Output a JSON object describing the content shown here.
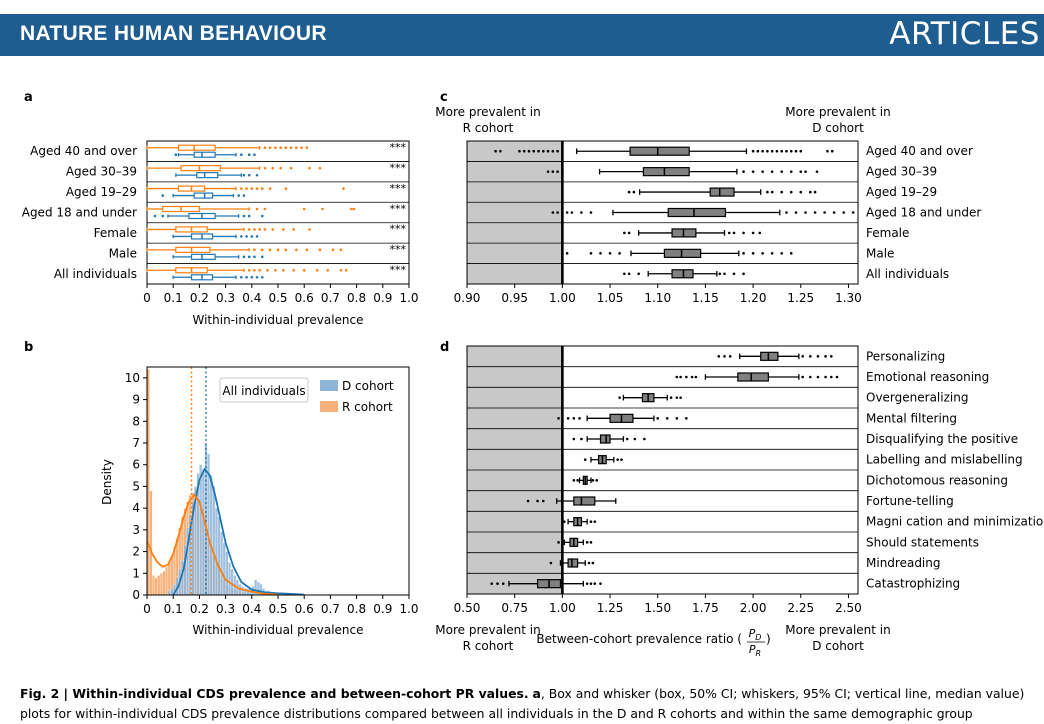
{
  "header": {
    "journal": "NATURE HUMAN BEHAVIOUR",
    "section": "ARTICLES"
  },
  "panel_a": {
    "label": "a"
  },
  "panel_b": {
    "label": "b"
  },
  "panel_c": {
    "label": "c",
    "left_note_1": "More prevalent in",
    "left_note_2": "R cohort",
    "right_note_1": "More prevalent in",
    "right_note_2": "D cohort"
  },
  "panel_d": {
    "label": "d",
    "left_note_1": "More prevalent in",
    "left_note_2": "R cohort",
    "right_note_1": "More prevalent in",
    "right_note_2": "D cohort",
    "xlabel_prefix": "Between-cohort prevalence ratio (",
    "ratio_num": "P",
    "ratio_num_sub": "D",
    "ratio_den": "P",
    "ratio_den_sub": "R",
    "xlabel_suffix": ")"
  },
  "colors": {
    "d_cohort": "#1f77b4",
    "r_cohort": "#ff7f0e",
    "d_fill": "#8fb5d9",
    "r_fill": "#f7b27b",
    "grey_box": "#808080",
    "shade": "#c8c8c8",
    "banner": "#1f5d91"
  },
  "caption": {
    "bold": "Fig. 2 | Within-individual CDS prevalence and between-cohort PR values.",
    "panel": "a",
    "line1_rest": ", Box and whisker (box, 50% CI; whiskers, 95% CI; vertical line, median value)",
    "line2": "plots for within-individual CDS prevalence distributions compared between all individuals in the D and R cohorts and within the same demographic group"
  },
  "chart_data": [
    {
      "panel": "a",
      "type": "box",
      "xlabel": "Within-individual prevalence",
      "xlim": [
        0,
        1.0
      ],
      "xticks": [
        "0",
        "0.1",
        "0.2",
        "0.3",
        "0.4",
        "0.5",
        "0.6",
        "0.7",
        "0.8",
        "0.9",
        "1.0"
      ],
      "series_names": [
        "R cohort",
        "D cohort"
      ],
      "categories": [
        "Aged 40 and over",
        "Aged 30–39",
        "Aged 19–29",
        "Aged 18 and under",
        "Female",
        "Male",
        "All individuals"
      ],
      "significance": [
        "***",
        "***",
        "***",
        "***",
        "***",
        "***",
        "***"
      ],
      "r_boxes": [
        {
          "wlo": 0.0,
          "q1": 0.12,
          "med": 0.18,
          "q3": 0.26,
          "whi": 0.43,
          "outliers": [
            0.45,
            0.47,
            0.49,
            0.51,
            0.53,
            0.55,
            0.57,
            0.59,
            0.61
          ]
        },
        {
          "wlo": 0.0,
          "q1": 0.13,
          "med": 0.2,
          "q3": 0.28,
          "whi": 0.43,
          "outliers": [
            0.45,
            0.48,
            0.51,
            0.55,
            0.62,
            0.66
          ]
        },
        {
          "wlo": 0.0,
          "q1": 0.12,
          "med": 0.17,
          "q3": 0.22,
          "whi": 0.34,
          "outliers": [
            0.36,
            0.38,
            0.4,
            0.42,
            0.44,
            0.47,
            0.53,
            0.75
          ]
        },
        {
          "wlo": 0.0,
          "q1": 0.06,
          "med": 0.13,
          "q3": 0.2,
          "whi": 0.39,
          "outliers": [
            0.42,
            0.45,
            0.6,
            0.67,
            0.78,
            0.79
          ]
        },
        {
          "wlo": 0.0,
          "q1": 0.11,
          "med": 0.17,
          "q3": 0.23,
          "whi": 0.37,
          "outliers": [
            0.39,
            0.41,
            0.43,
            0.45,
            0.48,
            0.52,
            0.56,
            0.62
          ]
        },
        {
          "wlo": 0.0,
          "q1": 0.11,
          "med": 0.17,
          "q3": 0.24,
          "whi": 0.39,
          "outliers": [
            0.41,
            0.44,
            0.47,
            0.5,
            0.53,
            0.57,
            0.61,
            0.66,
            0.71,
            0.74
          ]
        },
        {
          "wlo": 0.0,
          "q1": 0.11,
          "med": 0.17,
          "q3": 0.23,
          "whi": 0.37,
          "outliers": [
            0.39,
            0.41,
            0.43,
            0.46,
            0.49,
            0.52,
            0.56,
            0.6,
            0.65,
            0.69,
            0.74,
            0.76
          ]
        }
      ],
      "d_boxes": [
        {
          "wlo": 0.12,
          "q1": 0.18,
          "med": 0.21,
          "q3": 0.26,
          "whi": 0.34,
          "outliers": [
            0.11,
            0.36,
            0.39,
            0.41
          ]
        },
        {
          "wlo": 0.11,
          "q1": 0.19,
          "med": 0.22,
          "q3": 0.27,
          "whi": 0.36,
          "outliers": [
            0.37,
            0.39,
            0.42
          ]
        },
        {
          "wlo": 0.1,
          "q1": 0.18,
          "med": 0.22,
          "q3": 0.25,
          "whi": 0.33,
          "outliers": [
            0.06,
            0.35,
            0.37
          ]
        },
        {
          "wlo": 0.08,
          "q1": 0.16,
          "med": 0.21,
          "q3": 0.26,
          "whi": 0.35,
          "outliers": [
            0.03,
            0.06,
            0.37,
            0.39,
            0.44
          ]
        },
        {
          "wlo": 0.1,
          "q1": 0.17,
          "med": 0.21,
          "q3": 0.25,
          "whi": 0.34,
          "outliers": [
            0.36,
            0.38,
            0.4,
            0.42
          ]
        },
        {
          "wlo": 0.1,
          "q1": 0.17,
          "med": 0.21,
          "q3": 0.26,
          "whi": 0.35,
          "outliers": [
            0.37,
            0.39,
            0.41,
            0.44
          ]
        },
        {
          "wlo": 0.1,
          "q1": 0.17,
          "med": 0.21,
          "q3": 0.25,
          "whi": 0.34,
          "outliers": [
            0.36,
            0.38,
            0.4,
            0.42,
            0.44
          ]
        }
      ]
    },
    {
      "panel": "b",
      "type": "histogram+kde",
      "xlabel": "Within-individual prevalence",
      "ylabel": "Density",
      "xlim": [
        0,
        1.0
      ],
      "ylim": [
        0,
        10.5
      ],
      "xticks": [
        "0",
        "0.1",
        "0.2",
        "0.3",
        "0.4",
        "0.5",
        "0.6",
        "0.7",
        "0.8",
        "0.9",
        "1.0"
      ],
      "yticks": [
        "0",
        "1",
        "2",
        "3",
        "4",
        "5",
        "6",
        "7",
        "8",
        "9",
        "10"
      ],
      "legend_title": "All individuals",
      "legend_position": "top-center",
      "series": [
        {
          "name": "D cohort",
          "median": 0.225,
          "kde_x": [
            0.1,
            0.12,
            0.14,
            0.16,
            0.18,
            0.2,
            0.22,
            0.24,
            0.26,
            0.28,
            0.3,
            0.33,
            0.36,
            0.4,
            0.45,
            0.5,
            0.55,
            0.6
          ],
          "kde_y": [
            0,
            0.4,
            1.2,
            2.6,
            4.1,
            5.3,
            5.8,
            5.5,
            4.6,
            3.5,
            2.4,
            1.3,
            0.6,
            0.25,
            0.12,
            0.08,
            0.05,
            0.02
          ]
        },
        {
          "name": "R cohort",
          "median": 0.17,
          "kde_x": [
            0,
            0.01,
            0.02,
            0.04,
            0.06,
            0.08,
            0.1,
            0.12,
            0.14,
            0.16,
            0.18,
            0.2,
            0.22,
            0.24,
            0.27,
            0.3,
            0.35,
            0.4,
            0.45,
            0.5
          ],
          "kde_y": [
            2.5,
            2.2,
            1.9,
            1.5,
            1.3,
            1.4,
            1.9,
            2.7,
            3.6,
            4.3,
            4.6,
            4.3,
            3.4,
            2.4,
            1.4,
            0.7,
            0.3,
            0.15,
            0.05,
            0.02
          ]
        }
      ],
      "hist_bin_width": 0.01,
      "d_hist_x": [
        0.08,
        0.09,
        0.1,
        0.11,
        0.12,
        0.13,
        0.14,
        0.15,
        0.16,
        0.17,
        0.18,
        0.19,
        0.2,
        0.21,
        0.22,
        0.23,
        0.24,
        0.25,
        0.26,
        0.27,
        0.28,
        0.29,
        0.3,
        0.31,
        0.32,
        0.33,
        0.34,
        0.35,
        0.36,
        0.37,
        0.38,
        0.39,
        0.4,
        0.41,
        0.42,
        0.43,
        0.44,
        0.45,
        0.46,
        0.47,
        0.48,
        0.49,
        0.5
      ],
      "d_hist_y": [
        0.2,
        0.3,
        0.5,
        0.8,
        1.2,
        1.6,
        2.3,
        3.1,
        3.7,
        4.3,
        5.0,
        5.6,
        6.0,
        5.8,
        7.0,
        6.5,
        5.5,
        5.0,
        4.0,
        3.6,
        2.9,
        2.4,
        2.0,
        1.5,
        1.2,
        0.9,
        0.7,
        0.5,
        0.4,
        0.3,
        0.3,
        0.3,
        0.4,
        0.7,
        0.6,
        0.5,
        0.3,
        0.2,
        0.2,
        0.15,
        0.1,
        0.1,
        0.1
      ],
      "r_hist_x": [
        0.0,
        0.01,
        0.02,
        0.03,
        0.04,
        0.05,
        0.06,
        0.07,
        0.08,
        0.09,
        0.1,
        0.11,
        0.12,
        0.13,
        0.14,
        0.15,
        0.16,
        0.17,
        0.18,
        0.19,
        0.2,
        0.21,
        0.22,
        0.23,
        0.24,
        0.25,
        0.26,
        0.27,
        0.28,
        0.29,
        0.3,
        0.31,
        0.32,
        0.33,
        0.34,
        0.35,
        0.36,
        0.37,
        0.38,
        0.39,
        0.4
      ],
      "r_hist_y": [
        10.4,
        4.8,
        0.9,
        0.8,
        0.9,
        1.0,
        1.1,
        1.3,
        1.5,
        1.8,
        2.2,
        2.6,
        3.1,
        3.6,
        4.0,
        4.3,
        4.6,
        4.7,
        4.8,
        4.5,
        4.2,
        3.8,
        3.3,
        2.8,
        2.3,
        1.8,
        1.5,
        1.2,
        0.9,
        0.7,
        0.5,
        0.4,
        0.3,
        0.25,
        0.2,
        0.15,
        0.12,
        0.1,
        0.08,
        0.06,
        0.05
      ]
    },
    {
      "panel": "c",
      "type": "box",
      "xlim": [
        0.9,
        1.31
      ],
      "xticks": [
        "0.90",
        "0.95",
        "1.00",
        "1.05",
        "1.10",
        "1.15",
        "1.20",
        "1.25",
        "1.30"
      ],
      "reference_line": 1.0,
      "categories": [
        "Aged 40 and over",
        "Aged 30–39",
        "Aged 19–29",
        "Aged 18 and under",
        "Female",
        "Male",
        "All individuals"
      ],
      "boxes": [
        {
          "wlo": 1.015,
          "q1": 1.071,
          "med": 1.1,
          "q3": 1.133,
          "whi": 1.193,
          "outliers": [
            0.93,
            0.935,
            0.955,
            0.96,
            0.965,
            0.97,
            0.975,
            0.98,
            0.985,
            0.99,
            0.995,
            1.2,
            1.205,
            1.21,
            1.215,
            1.22,
            1.225,
            1.23,
            1.235,
            1.24,
            1.245,
            1.25,
            1.278,
            1.283
          ]
        },
        {
          "wlo": 1.039,
          "q1": 1.085,
          "med": 1.107,
          "q3": 1.133,
          "whi": 1.183,
          "outliers": [
            0.985,
            0.99,
            0.995,
            1.0,
            1.19,
            1.2,
            1.21,
            1.22,
            1.23,
            1.24,
            1.25,
            1.255,
            1.267
          ]
        },
        {
          "wlo": 1.081,
          "q1": 1.155,
          "med": 1.165,
          "q3": 1.18,
          "whi": 1.208,
          "outliers": [
            1.07,
            1.075,
            1.215,
            1.22,
            1.23,
            1.24,
            1.25,
            1.26,
            1.265
          ]
        },
        {
          "wlo": 1.053,
          "q1": 1.111,
          "med": 1.138,
          "q3": 1.171,
          "whi": 1.228,
          "outliers": [
            0.99,
            0.995,
            1.0,
            1.005,
            1.01,
            1.02,
            1.03,
            1.235,
            1.245,
            1.255,
            1.265,
            1.275,
            1.285,
            1.295,
            1.305
          ]
        },
        {
          "wlo": 1.08,
          "q1": 1.115,
          "med": 1.127,
          "q3": 1.14,
          "whi": 1.17,
          "outliers": [
            1.065,
            1.07,
            1.175,
            1.18,
            1.19,
            1.2,
            1.207
          ]
        },
        {
          "wlo": 1.072,
          "q1": 1.107,
          "med": 1.125,
          "q3": 1.145,
          "whi": 1.185,
          "outliers": [
            1.005,
            1.03,
            1.04,
            1.05,
            1.06,
            1.19,
            1.2,
            1.21,
            1.22,
            1.23,
            1.24
          ]
        },
        {
          "wlo": 1.09,
          "q1": 1.115,
          "med": 1.127,
          "q3": 1.137,
          "whi": 1.162,
          "outliers": [
            1.065,
            1.07,
            1.08,
            1.165,
            1.17,
            1.18,
            1.19
          ]
        }
      ]
    },
    {
      "panel": "d",
      "type": "box",
      "xlim": [
        0.5,
        2.55
      ],
      "xticks": [
        "0.50",
        "0.75",
        "1.00",
        "1.25",
        "1.50",
        "1.75",
        "2.00",
        "2.25",
        "2.50"
      ],
      "reference_line": 1.0,
      "categories": [
        "Personalizing",
        "Emotional reasoning",
        "Overgeneralizing",
        "Mental filtering",
        "Disqualifying the positive",
        "Labelling and mislabelling",
        "Dichotomous reasoning",
        "Fortune-telling",
        "Magni  cation and minimization",
        "Should statements",
        "Mindreading",
        "Catastrophizing"
      ],
      "boxes": [
        {
          "wlo": 1.93,
          "q1": 2.04,
          "med": 2.08,
          "q3": 2.13,
          "whi": 2.24,
          "outliers": [
            1.82,
            1.85,
            1.88,
            2.26,
            2.3,
            2.34,
            2.38,
            2.41
          ]
        },
        {
          "wlo": 1.75,
          "q1": 1.92,
          "med": 1.99,
          "q3": 2.08,
          "whi": 2.24,
          "outliers": [
            1.6,
            1.62,
            1.65,
            1.68,
            1.7,
            2.26,
            2.3,
            2.34,
            2.38,
            2.41,
            2.44
          ]
        },
        {
          "wlo": 1.32,
          "q1": 1.42,
          "med": 1.45,
          "q3": 1.48,
          "whi": 1.55,
          "outliers": [
            1.3,
            1.57,
            1.6,
            1.62
          ]
        },
        {
          "wlo": 1.13,
          "q1": 1.25,
          "med": 1.31,
          "q3": 1.37,
          "whi": 1.48,
          "outliers": [
            0.98,
            1.03,
            1.06,
            1.09,
            1.5,
            1.55,
            1.6,
            1.65
          ]
        },
        {
          "wlo": 1.13,
          "q1": 1.2,
          "med": 1.23,
          "q3": 1.25,
          "whi": 1.32,
          "outliers": [
            1.06,
            1.1,
            1.34,
            1.38,
            1.43
          ]
        },
        {
          "wlo": 1.15,
          "q1": 1.19,
          "med": 1.21,
          "q3": 1.23,
          "whi": 1.27,
          "outliers": [
            1.12,
            1.29,
            1.31
          ]
        },
        {
          "wlo": 1.09,
          "q1": 1.11,
          "med": 1.12,
          "q3": 1.13,
          "whi": 1.15,
          "outliers": [
            1.06,
            1.08,
            1.16,
            1.18
          ]
        },
        {
          "wlo": 0.97,
          "q1": 1.06,
          "med": 1.1,
          "q3": 1.17,
          "whi": 1.28,
          "outliers": [
            0.82,
            0.87,
            0.9
          ]
        },
        {
          "wlo": 1.03,
          "q1": 1.06,
          "med": 1.08,
          "q3": 1.1,
          "whi": 1.13,
          "outliers": [
            1.01,
            1.15,
            1.17
          ]
        },
        {
          "wlo": 1.01,
          "q1": 1.04,
          "med": 1.06,
          "q3": 1.08,
          "whi": 1.11,
          "outliers": [
            0.98,
            1.13,
            1.15
          ]
        },
        {
          "wlo": 0.99,
          "q1": 1.03,
          "med": 1.05,
          "q3": 1.08,
          "whi": 1.12,
          "outliers": [
            0.94,
            1.14,
            1.16
          ]
        },
        {
          "wlo": 0.72,
          "q1": 0.87,
          "med": 0.93,
          "q3": 0.99,
          "whi": 1.11,
          "outliers": [
            0.63,
            0.66,
            0.69,
            1.13,
            1.15,
            1.17,
            1.2
          ]
        }
      ]
    }
  ]
}
